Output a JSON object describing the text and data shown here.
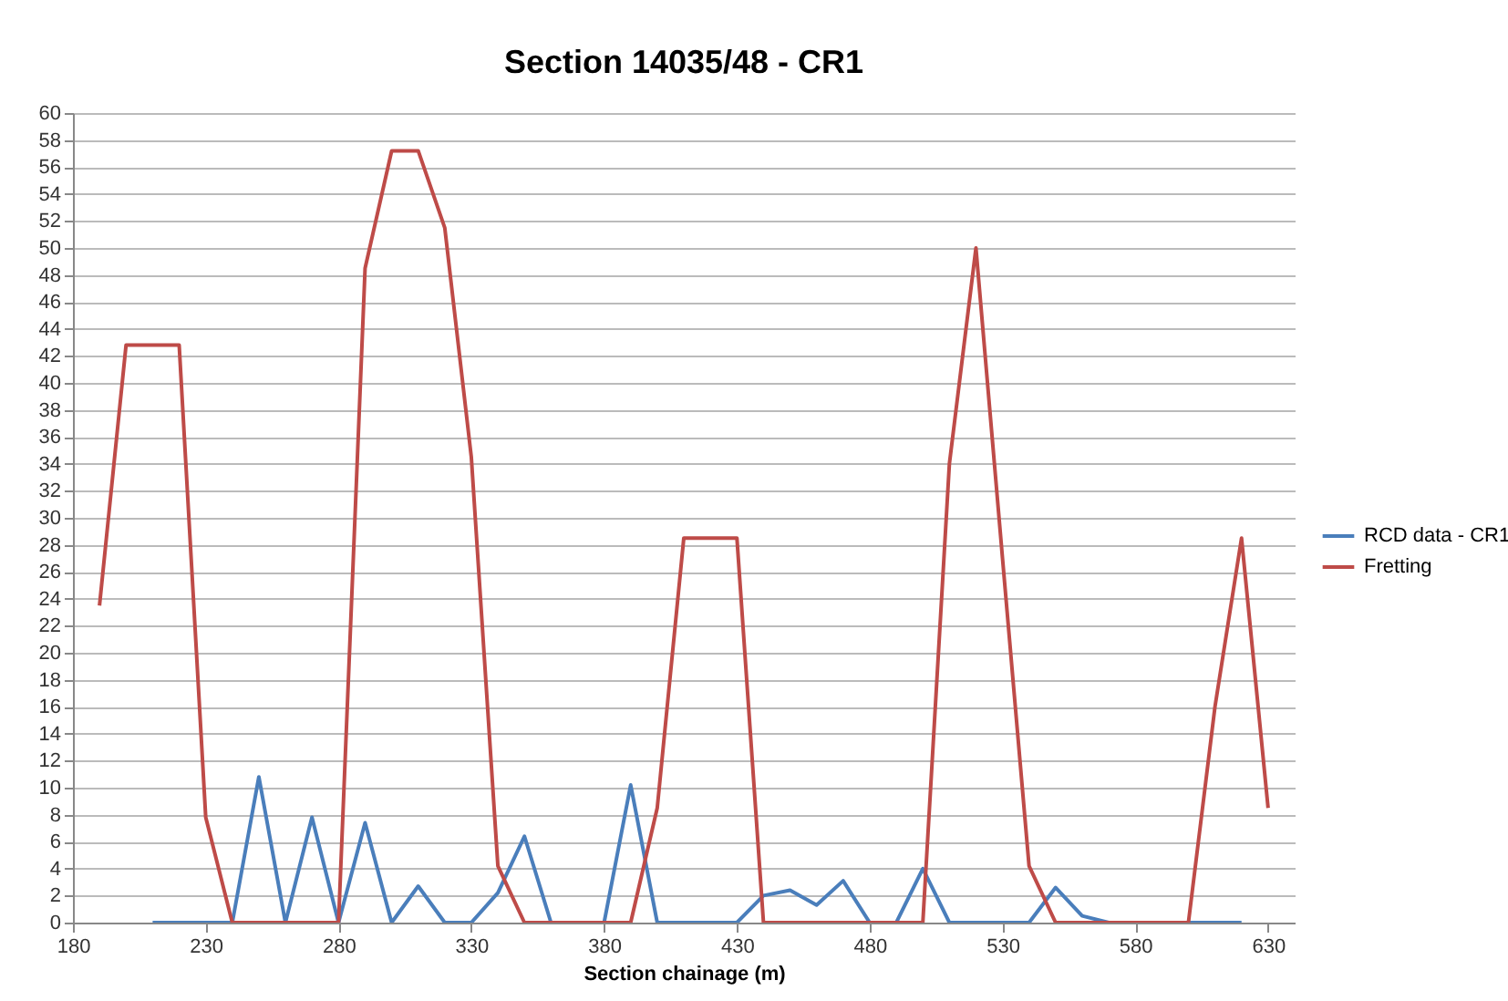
{
  "chart_data": {
    "type": "line",
    "title": "Section 14035/48 - CR1",
    "xlabel": "Section chainage (m)",
    "xlim": [
      180,
      640
    ],
    "xticks": [
      180,
      230,
      280,
      330,
      380,
      430,
      480,
      530,
      580,
      630
    ],
    "ylim": [
      0,
      60
    ],
    "yticks": [
      0,
      2,
      4,
      6,
      8,
      10,
      12,
      14,
      16,
      18,
      20,
      22,
      24,
      26,
      28,
      30,
      32,
      34,
      36,
      38,
      40,
      42,
      44,
      46,
      48,
      50,
      52,
      54,
      56,
      58,
      60
    ],
    "grid": "y",
    "legend": "right",
    "marker": "none",
    "line_style": "solid",
    "series": [
      {
        "name": "RCD data - CR1",
        "color": "#4a7ebb",
        "x": [
          210,
          220,
          230,
          240,
          250,
          260,
          270,
          280,
          290,
          300,
          310,
          320,
          330,
          340,
          350,
          360,
          370,
          380,
          390,
          400,
          410,
          420,
          430,
          440,
          450,
          460,
          470,
          480,
          490,
          500,
          510,
          520,
          530,
          540,
          550,
          560,
          570,
          580,
          590,
          600,
          610,
          620
        ],
        "values": [
          0,
          0,
          0,
          0,
          10.8,
          0,
          7.8,
          0,
          7.4,
          0,
          2.7,
          0,
          0,
          2.2,
          6.4,
          0,
          0,
          0,
          10.2,
          0,
          0,
          0,
          0,
          2.0,
          2.4,
          1.3,
          3.1,
          0,
          0,
          4.0,
          0,
          0,
          0,
          0,
          2.6,
          0.5,
          0,
          0,
          0,
          0,
          0,
          0
        ]
      },
      {
        "name": "Fretting",
        "color": "#be4b48",
        "x": [
          190,
          200,
          210,
          220,
          230,
          240,
          250,
          260,
          270,
          280,
          290,
          300,
          310,
          320,
          330,
          340,
          350,
          360,
          370,
          380,
          390,
          400,
          410,
          420,
          430,
          440,
          450,
          460,
          470,
          480,
          490,
          500,
          510,
          520,
          530,
          540,
          550,
          560,
          570,
          580,
          590,
          600,
          610,
          620,
          630
        ],
        "values": [
          23.5,
          42.8,
          42.8,
          42.8,
          7.8,
          0,
          0,
          0,
          0,
          0,
          48.5,
          57.2,
          57.2,
          51.5,
          34.5,
          4.2,
          0,
          0,
          0,
          0,
          0,
          8.5,
          28.5,
          28.5,
          28.5,
          0,
          0,
          0,
          0,
          0,
          0,
          0,
          34,
          50,
          27,
          4.2,
          0,
          0,
          0,
          0,
          0,
          0,
          16,
          28.5,
          8.5
        ]
      }
    ]
  }
}
